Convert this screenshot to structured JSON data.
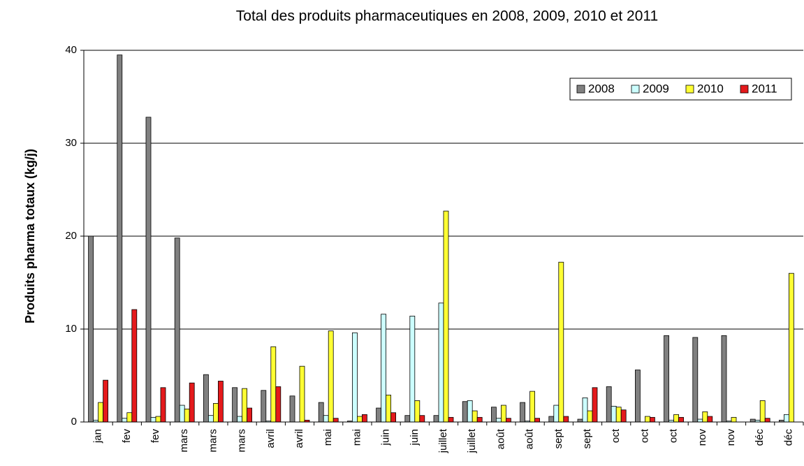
{
  "chart_data": {
    "type": "bar",
    "title": "Total des produits pharmaceutiques en 2008, 2009, 2010 et 2011",
    "y_label": "Produits pharma totaux (kg/j)",
    "categories": [
      "jan",
      "fev",
      "fev",
      "mars",
      "mars",
      "mars",
      "avril",
      "avril",
      "mai",
      "mai",
      "juin",
      "juin",
      "juillet",
      "juillet",
      "août",
      "août",
      "sept",
      "sept",
      "oct",
      "oct",
      "oct",
      "nov",
      "nov",
      "déc",
      "déc"
    ],
    "series": [
      {
        "name": "2008",
        "color": "#808080",
        "values": [
          20,
          39.5,
          32.8,
          19.8,
          5.1,
          3.7,
          3.4,
          2.8,
          2.1,
          0.1,
          1.5,
          0.7,
          0.7,
          2.2,
          1.6,
          2.1,
          0.6,
          0.3,
          3.8,
          5.6,
          9.3,
          9.1,
          9.3,
          0.3,
          0.2
        ]
      },
      {
        "name": "2009",
        "color": "#ccffff",
        "values": [
          0.2,
          0.4,
          0.5,
          1.8,
          0.7,
          0.6,
          0.1,
          0,
          0.7,
          9.6,
          11.6,
          11.4,
          12.8,
          2.3,
          0.4,
          0.1,
          1.8,
          2.6,
          1.7,
          0,
          0.2,
          0.3,
          0.1,
          0.2,
          0.8
        ]
      },
      {
        "name": "2010",
        "color": "#ffff33",
        "values": [
          2.1,
          1.0,
          0.6,
          1.4,
          2.0,
          3.6,
          8.1,
          6.0,
          9.8,
          0.6,
          2.9,
          2.3,
          22.7,
          1.2,
          1.8,
          3.3,
          17.2,
          1.2,
          1.6,
          0.6,
          0.8,
          1.1,
          0.5,
          2.3,
          16.0
        ]
      },
      {
        "name": "2011",
        "color": "#e41a1c",
        "values": [
          4.5,
          12.1,
          3.7,
          4.2,
          4.4,
          1.5,
          3.8,
          0.2,
          0.4,
          0.8,
          1.0,
          0.7,
          0.5,
          0.5,
          0.4,
          0.4,
          0.6,
          3.7,
          1.3,
          0.5,
          0.5,
          0.6,
          0,
          0.4,
          0
        ]
      }
    ],
    "ylim": [
      0,
      40
    ],
    "yticks": [
      0,
      10,
      20,
      30,
      40
    ],
    "grid": true,
    "legend": "upper right"
  }
}
